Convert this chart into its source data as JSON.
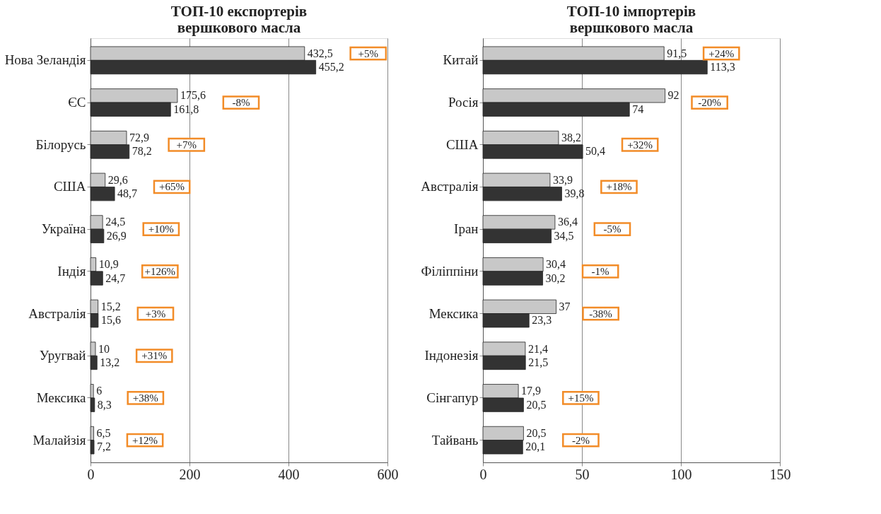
{
  "chart_data": [
    {
      "type": "bar",
      "orientation": "horizontal",
      "title": "ТОП-10 експортерів\nвершкового масла",
      "categories": [
        "Нова Зеландія",
        "ЄС",
        "Білорусь",
        "США",
        "Україна",
        "Індія",
        "Австралія",
        "Уругвай",
        "Мексика",
        "Малайзія"
      ],
      "series": [
        {
          "color": "#c8c8c8",
          "values": [
            432.5,
            175.6,
            72.9,
            29.6,
            24.5,
            10.9,
            15.2,
            10,
            6,
            6.5
          ],
          "value_labels": [
            "432,5",
            "175,6",
            "72,9",
            "29,6",
            "24,5",
            "10,9",
            "15,2",
            "10",
            "6",
            "6,5"
          ]
        },
        {
          "color": "#333333",
          "values": [
            455.2,
            161.8,
            78.2,
            48.7,
            26.9,
            24.7,
            15.6,
            13.2,
            8.3,
            7.2
          ],
          "value_labels": [
            "455,2",
            "161,8",
            "78,2",
            "48,7",
            "26,9",
            "24,7",
            "15,6",
            "13,2",
            "8,3",
            "7,2"
          ]
        }
      ],
      "xlim": [
        0,
        600
      ],
      "xticks": [
        0,
        200,
        400,
        600
      ],
      "grid": "x",
      "annotations": [
        "+5%",
        "-8%",
        "+7%",
        "+65%",
        "+10%",
        "+126%",
        "+3%",
        "+31%",
        "+38%",
        "+12%"
      ]
    },
    {
      "type": "bar",
      "orientation": "horizontal",
      "title": "ТОП-10 імпортерів\nвершкового масла",
      "categories": [
        "Китай",
        "Росія",
        "США",
        "Австралія",
        "Іран",
        "Філіппіни",
        "Мексика",
        "Індонезія",
        "Сінгапур",
        "Тайвань"
      ],
      "series": [
        {
          "color": "#c8c8c8",
          "values": [
            91.5,
            92,
            38.2,
            33.9,
            36.4,
            30.4,
            37,
            21.4,
            17.9,
            20.5
          ],
          "value_labels": [
            "91,5",
            "92",
            "38,2",
            "33,9",
            "36,4",
            "30,4",
            "37",
            "21,4",
            "17,9",
            "20,5"
          ]
        },
        {
          "color": "#333333",
          "values": [
            113.3,
            74,
            50.4,
            39.8,
            34.5,
            30.2,
            23.3,
            21.5,
            20.5,
            20.1
          ],
          "value_labels": [
            "113,3",
            "74",
            "50,4",
            "39,8",
            "34,5",
            "30,2",
            "23,3",
            "21,5",
            "20,5",
            "20,1"
          ]
        }
      ],
      "xlim": [
        0,
        150
      ],
      "xticks": [
        0,
        50,
        100,
        150
      ],
      "grid": "x",
      "annotations": [
        "+24%",
        "-20%",
        "+32%",
        "+18%",
        "-5%",
        "-1%",
        "-38%",
        null,
        "+15%",
        "-2%"
      ]
    }
  ]
}
